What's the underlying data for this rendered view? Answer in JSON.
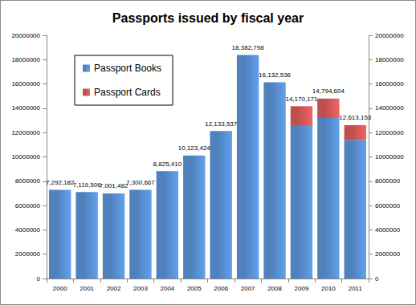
{
  "chart_data": {
    "type": "bar",
    "title": "Passports issued by fiscal year",
    "categories": [
      "2000",
      "2001",
      "2002",
      "2003",
      "2004",
      "2005",
      "2006",
      "2007",
      "2008",
      "2009",
      "2010",
      "2011"
    ],
    "series": [
      {
        "name": "Passport Books",
        "color": "#4f81bd",
        "values": [
          7292182,
          7119506,
          7001482,
          7300667,
          8825410,
          10123424,
          12133537,
          18382798,
          16132536,
          12600000,
          13200000,
          11400000
        ]
      },
      {
        "name": "Passport Cards",
        "color": "#c0504d",
        "values": [
          null,
          null,
          null,
          null,
          null,
          null,
          null,
          null,
          null,
          1570171,
          1594604,
          1213153
        ]
      }
    ],
    "totals": [
      7292182,
      7119506,
      7001482,
      7300667,
      8825410,
      10123424,
      12133537,
      18382798,
      16132536,
      14170171,
      14794604,
      12613153
    ],
    "total_labels": [
      "7,292,182",
      "7,119,506",
      "7,001,482",
      "7,300,667",
      "8,825,410",
      "10,123,424",
      "12,133,537",
      "18,382,798",
      "16,132,536",
      "14,170,171",
      "14,794,604",
      "12,613,153"
    ],
    "stacked": true,
    "ylim": [
      0,
      20000000
    ],
    "yticks": [
      0,
      2000000,
      4000000,
      6000000,
      8000000,
      10000000,
      12000000,
      14000000,
      16000000,
      18000000,
      20000000
    ],
    "y2lim": [
      0,
      20000000
    ],
    "y2ticks": [
      0,
      2000000,
      4000000,
      6000000,
      8000000,
      10000000,
      12000000,
      14000000,
      16000000,
      18000000,
      20000000
    ],
    "grid": false,
    "legend": "upper left"
  }
}
